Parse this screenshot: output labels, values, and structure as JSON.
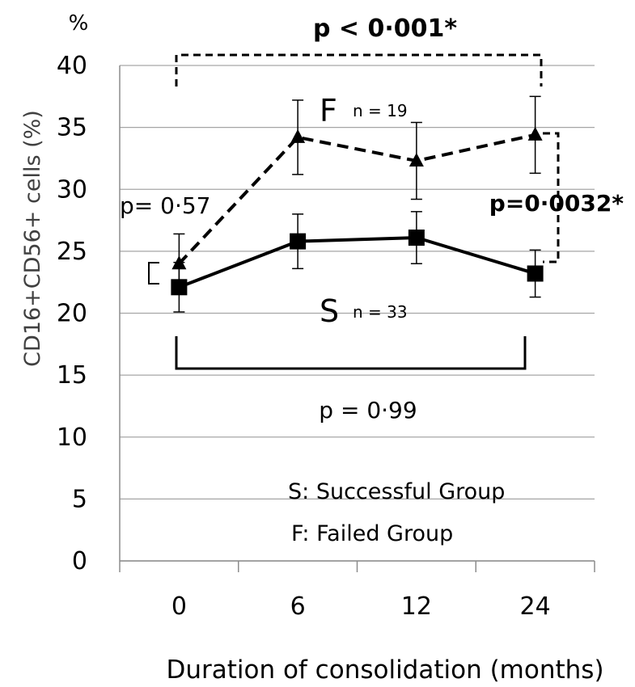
{
  "chart_data": {
    "type": "line",
    "ylabel": "CD16+CD56+ cells (%)",
    "yunit": "%",
    "xlabel": "Duration of consolidation (months)",
    "categories": [
      "0",
      "6",
      "12",
      "24"
    ],
    "ylim": [
      0,
      40
    ],
    "yticks": [
      0,
      5,
      10,
      15,
      20,
      25,
      30,
      35,
      40
    ],
    "grid": true,
    "series": [
      {
        "name": "F",
        "n_label": "n = 19",
        "values": [
          24.0,
          34.2,
          32.3,
          34.4
        ],
        "err": [
          2.4,
          3.0,
          3.1,
          3.1
        ],
        "marker": "triangle",
        "line": "dashed"
      },
      {
        "name": "S",
        "n_label": "n = 33",
        "values": [
          22.1,
          25.8,
          26.1,
          23.2
        ],
        "err": [
          2.0,
          2.2,
          2.1,
          1.9
        ],
        "marker": "square",
        "line": "solid"
      }
    ],
    "annotations": {
      "top": "p < 0·001*",
      "right": "p=0·0032*",
      "left": "p= 0·57",
      "bottom": "p = 0·99"
    },
    "legend_text": [
      "S: Successful Group",
      "F: Failed Group"
    ]
  }
}
